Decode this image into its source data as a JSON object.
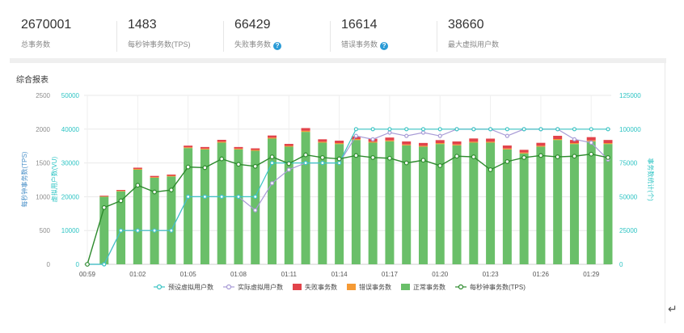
{
  "stats": [
    {
      "value": "2670001",
      "label": "总事务数",
      "help": false
    },
    {
      "value": "1483",
      "label": "每秒钟事务数(TPS)",
      "help": false
    },
    {
      "value": "66429",
      "label": "失败事务数",
      "help": true
    },
    {
      "value": "16614",
      "label": "错误事务数",
      "help": true
    },
    {
      "value": "38660",
      "label": "最大虚拟用户数",
      "help": false
    }
  ],
  "chart_title": "综合报表",
  "help_icon_glyph": "?",
  "return_icon": "↵",
  "chart_data": {
    "type": "bar",
    "x_tick_labels": [
      "00:59",
      "01:02",
      "01:05",
      "01:08",
      "01:11",
      "01:14",
      "01:17",
      "01:20",
      "01:23",
      "01:26",
      "01:29"
    ],
    "axes": {
      "left_tps": {
        "label": "每秒钟事务数(TPS)",
        "ticks": [
          0,
          500,
          1000,
          1500,
          2000,
          2500
        ],
        "range": [
          0,
          2500
        ],
        "color": "#4a90c8"
      },
      "left_vu": {
        "label": "虚拟用户数(VU)",
        "ticks": [
          0,
          10000,
          20000,
          30000,
          40000,
          50000
        ],
        "range": [
          0,
          50000
        ],
        "color": "#2ec4c4"
      },
      "right_tx": {
        "label": "事务数统计(个)",
        "ticks": [
          0,
          25000,
          50000,
          75000,
          100000,
          125000
        ],
        "range": [
          0,
          125000
        ],
        "color": "#2ec4c4"
      }
    },
    "legend": [
      {
        "name": "预设虚拟用户数",
        "kind": "line-hollow",
        "color": "#3cc4c4"
      },
      {
        "name": "实际虚拟用户数",
        "kind": "line-hollow",
        "color": "#a89bd6"
      },
      {
        "name": "失败事务数",
        "kind": "box",
        "color": "#e2434a"
      },
      {
        "name": "错误事务数",
        "kind": "box",
        "color": "#f59a35"
      },
      {
        "name": "正常事务数",
        "kind": "box",
        "color": "#6abf69"
      },
      {
        "name": "每秒钟事务数(TPS)",
        "kind": "line-hollow",
        "color": "#2e8b2e"
      }
    ],
    "legend_position": "bottom",
    "grid": true,
    "series": {
      "normal": [
        0,
        50000,
        54000,
        70000,
        64000,
        65000,
        86000,
        85000,
        90000,
        85000,
        84000,
        93000,
        87000,
        98000,
        90000,
        89000,
        92000,
        90000,
        91000,
        88000,
        87000,
        89000,
        88000,
        90000,
        90000,
        85000,
        82000,
        87000,
        92000,
        89000,
        91000,
        89000
      ],
      "error": [
        0,
        300,
        400,
        600,
        500,
        500,
        600,
        600,
        700,
        600,
        600,
        700,
        600,
        800,
        700,
        700,
        700,
        700,
        700,
        700,
        700,
        700,
        700,
        700,
        700,
        700,
        700,
        700,
        700,
        700,
        700,
        700
      ],
      "failed": [
        0,
        500,
        600,
        900,
        900,
        900,
        1200,
        1200,
        1400,
        1200,
        1200,
        1600,
        1500,
        2000,
        1800,
        1800,
        2000,
        2200,
        2100,
        2200,
        2100,
        2200,
        2200,
        2400,
        2300,
        2200,
        2000,
        2200,
        2400,
        2300,
        2400,
        2300
      ],
      "tps": [
        0,
        840,
        940,
        1170,
        1070,
        1100,
        1440,
        1430,
        1560,
        1480,
        1450,
        1590,
        1490,
        1620,
        1580,
        1560,
        1610,
        1580,
        1570,
        1500,
        1540,
        1460,
        1600,
        1590,
        1400,
        1520,
        1580,
        1610,
        1590,
        1600,
        1630,
        1580
      ],
      "preset_vu": [
        0,
        0,
        10000,
        10000,
        10000,
        10000,
        20000,
        20000,
        20000,
        20000,
        20000,
        30000,
        30000,
        30000,
        30000,
        30000,
        40000,
        40000,
        40000,
        40000,
        40000,
        40000,
        40000,
        40000,
        40000,
        40000,
        40000,
        40000,
        40000,
        40000,
        40000,
        40000
      ],
      "actual_vu": [
        0,
        0,
        10000,
        10000,
        10000,
        10000,
        20000,
        20000,
        20000,
        20000,
        16000,
        24000,
        28000,
        30000,
        30000,
        30000,
        38000,
        37000,
        39000,
        38000,
        39000,
        38000,
        40000,
        40000,
        40000,
        38000,
        40000,
        40000,
        40000,
        37000,
        36000,
        31000
      ]
    },
    "tick_index": [
      0,
      3,
      6,
      9,
      12,
      15,
      18,
      21,
      24,
      27,
      30
    ]
  }
}
